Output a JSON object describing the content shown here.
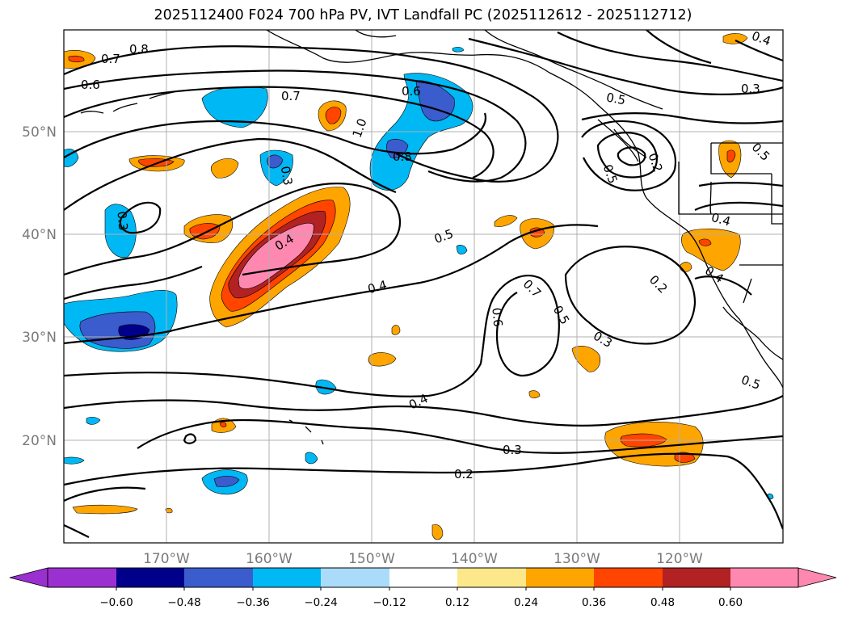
{
  "title": "2025112400 F024 700 hPa PV, IVT Landfall PC (2025112612 - 2025112712)",
  "axes": {
    "lon_labels": [
      "170°W",
      "160°W",
      "150°W",
      "140°W",
      "130°W",
      "120°W"
    ],
    "lat_labels": [
      "50°N",
      "40°N",
      "30°N",
      "20°N"
    ]
  },
  "contour_labels": [
    "0.8",
    "0.7",
    "0.6",
    "0.7",
    "1.0",
    "0.8",
    "0.6",
    "0.3",
    "0.3",
    "0.4",
    "0.5",
    "0.4",
    "0.4",
    "0.2",
    "0.3",
    "0.2",
    "0.3",
    "0.5",
    "0.5",
    "0.4",
    "0.6",
    "0.7",
    "0.5",
    "0.2",
    "0.3",
    "0.4",
    "0.5",
    "0.4",
    "0.5"
  ],
  "colorbar": {
    "ticks": [
      "−0.60",
      "−0.48",
      "−0.36",
      "−0.24",
      "−0.12",
      "0.12",
      "0.24",
      "0.36",
      "0.48",
      "0.60"
    ],
    "colors": {
      "under": "#9b30d0",
      "n060": "#00008b",
      "n048": "#3a5ccc",
      "n036": "#00b8f4",
      "n024": "#aadcfa",
      "neutral": "#ffffff",
      "p012": "#fce88a",
      "p024": "#ffa500",
      "p036": "#ff4500",
      "p048": "#b22222",
      "over": "#ff88b0"
    }
  }
}
